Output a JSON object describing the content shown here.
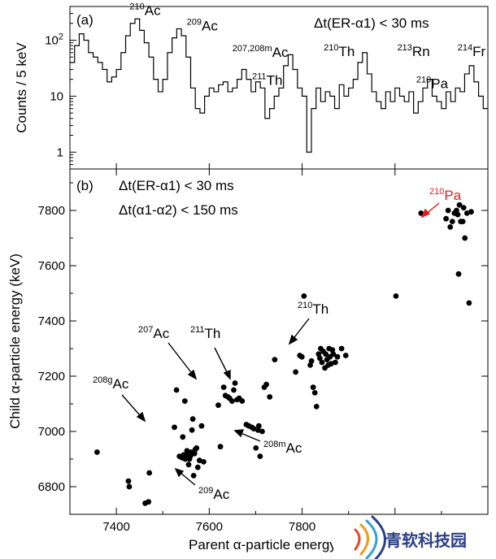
{
  "chart_data": [
    {
      "panel": "(a)",
      "type": "line",
      "ylabel": "Counts / 5 keV",
      "yscale": "log",
      "ylim": [
        0.5,
        400
      ],
      "xlim": [
        7300,
        8200
      ],
      "yticks": [
        {
          "value": 1,
          "label": "1"
        },
        {
          "value": 10,
          "label": "10"
        },
        {
          "value": 100,
          "label": "10",
          "exp": "2"
        }
      ],
      "condition": "Δt(ER-α1) < 30 ms",
      "peak_labels": [
        {
          "iso": "210",
          "name": "Ac",
          "x": 7462,
          "y": 280
        },
        {
          "iso": "209",
          "name": "Ac",
          "x": 7585,
          "y": 150
        },
        {
          "iso": "207,208m",
          "name": "Ac",
          "x": 7710,
          "y": 50
        },
        {
          "iso": "211",
          "name": "Th",
          "x": 7725,
          "y": 16
        },
        {
          "iso": "210",
          "name": "Th",
          "x": 7880,
          "y": 52
        },
        {
          "iso": "213",
          "name": "Rn",
          "x": 8040,
          "y": 52
        },
        {
          "iso": "210",
          "name": "Pa",
          "x": 8080,
          "y": 14
        },
        {
          "iso": "214",
          "name": "Fr",
          "x": 8165,
          "y": 52
        }
      ],
      "x": [
        7305,
        7315,
        7325,
        7335,
        7345,
        7355,
        7365,
        7375,
        7385,
        7395,
        7405,
        7415,
        7425,
        7435,
        7445,
        7455,
        7465,
        7475,
        7485,
        7495,
        7505,
        7515,
        7525,
        7535,
        7545,
        7555,
        7565,
        7575,
        7585,
        7595,
        7605,
        7615,
        7625,
        7635,
        7645,
        7655,
        7665,
        7675,
        7685,
        7695,
        7705,
        7715,
        7725,
        7735,
        7745,
        7755,
        7765,
        7775,
        7785,
        7795,
        7805,
        7815,
        7825,
        7835,
        7845,
        7855,
        7865,
        7875,
        7885,
        7895,
        7905,
        7915,
        7925,
        7935,
        7945,
        7955,
        7965,
        7975,
        7985,
        7995,
        8005,
        8015,
        8025,
        8035,
        8045,
        8055,
        8065,
        8075,
        8085,
        8095,
        8105,
        8115,
        8125,
        8135,
        8145,
        8155,
        8165,
        8175,
        8185,
        8195
      ],
      "y": [
        40,
        80,
        130,
        100,
        60,
        50,
        40,
        30,
        18,
        22,
        30,
        60,
        120,
        200,
        240,
        150,
        90,
        50,
        20,
        12,
        20,
        60,
        110,
        160,
        120,
        50,
        14,
        6,
        5,
        10,
        14,
        12,
        16,
        18,
        12,
        14,
        20,
        30,
        20,
        12,
        18,
        14,
        4,
        6,
        10,
        14,
        35,
        55,
        30,
        14,
        10,
        1,
        6,
        14,
        8,
        12,
        10,
        6,
        16,
        10,
        14,
        20,
        40,
        60,
        25,
        12,
        8,
        6,
        12,
        8,
        14,
        10,
        8,
        12,
        5,
        8,
        14,
        20,
        10,
        8,
        6,
        12,
        8,
        14,
        12,
        25,
        35,
        18,
        10,
        6
      ]
    },
    {
      "panel": "(b)",
      "type": "scatter",
      "xlabel": "Parent α-particle energy (keV)",
      "ylabel": "Child α-particle energy (keV)",
      "xlim": [
        7300,
        8200
      ],
      "ylim": [
        6700,
        7950
      ],
      "xticks": [
        7400,
        7600,
        7800,
        8000
      ],
      "xtick_labels": [
        "7400",
        "7600",
        "7800",
        "8000"
      ],
      "yticks": [
        6800,
        7000,
        7200,
        7400,
        7600,
        7800
      ],
      "ytick_labels": [
        "6800",
        "7000",
        "7200",
        "7400",
        "7600",
        "7800"
      ],
      "conditions": [
        "Δt(ER-α1) < 30 ms",
        "Δt(α1-α2) < 150 ms"
      ],
      "annotations": [
        {
          "iso": "210",
          "name": "Pa",
          "color": "#e41a1c"
        },
        {
          "iso": "210",
          "name": "Th",
          "color": "#000000"
        },
        {
          "iso": "207",
          "name": "Ac",
          "color": "#000000"
        },
        {
          "iso": "211",
          "name": "Th",
          "color": "#000000"
        },
        {
          "iso": "208g",
          "name": "Ac",
          "color": "#000000"
        },
        {
          "iso": "208m",
          "name": "Ac",
          "color": "#000000"
        },
        {
          "iso": "209",
          "name": "Ac",
          "color": "#000000"
        }
      ],
      "points": [
        [
          7365,
          6925
        ],
        [
          7440,
          6820
        ],
        [
          7442,
          6800
        ],
        [
          7480,
          6740
        ],
        [
          7488,
          6745
        ],
        [
          7490,
          6850
        ],
        [
          7550,
          7015
        ],
        [
          7555,
          7150
        ],
        [
          7562,
          6910
        ],
        [
          7568,
          6905
        ],
        [
          7570,
          6980
        ],
        [
          7572,
          6915
        ],
        [
          7575,
          7110
        ],
        [
          7576,
          6900
        ],
        [
          7580,
          6930
        ],
        [
          7582,
          6915
        ],
        [
          7584,
          6880
        ],
        [
          7586,
          6900
        ],
        [
          7588,
          6910
        ],
        [
          7590,
          6925
        ],
        [
          7592,
          7005
        ],
        [
          7594,
          7045
        ],
        [
          7596,
          6840
        ],
        [
          7598,
          6920
        ],
        [
          7600,
          6935
        ],
        [
          7603,
          6940
        ],
        [
          7606,
          6870
        ],
        [
          7610,
          6895
        ],
        [
          7615,
          7020
        ],
        [
          7620,
          6890
        ],
        [
          7655,
          7095
        ],
        [
          7660,
          6945
        ],
        [
          7668,
          7160
        ],
        [
          7672,
          7130
        ],
        [
          7678,
          7125
        ],
        [
          7682,
          7120
        ],
        [
          7688,
          7110
        ],
        [
          7692,
          7150
        ],
        [
          7695,
          7175
        ],
        [
          7700,
          7115
        ],
        [
          7705,
          7120
        ],
        [
          7712,
          7110
        ],
        [
          7722,
          7025
        ],
        [
          7728,
          7020
        ],
        [
          7735,
          7015
        ],
        [
          7740,
          7010
        ],
        [
          7745,
          6940
        ],
        [
          7750,
          7005
        ],
        [
          7752,
          7020
        ],
        [
          7755,
          6910
        ],
        [
          7760,
          7000
        ],
        [
          7765,
          7160
        ],
        [
          7770,
          7170
        ],
        [
          7778,
          7125
        ],
        [
          7790,
          7260
        ],
        [
          7840,
          7215
        ],
        [
          7850,
          7275
        ],
        [
          7855,
          7270
        ],
        [
          7860,
          7490
        ],
        [
          7875,
          7240
        ],
        [
          7878,
          7255
        ],
        [
          7882,
          7160
        ],
        [
          7886,
          7140
        ],
        [
          7890,
          7090
        ],
        [
          7895,
          7280
        ],
        [
          7898,
          7265
        ],
        [
          7900,
          7300
        ],
        [
          7903,
          7250
        ],
        [
          7906,
          7290
        ],
        [
          7910,
          7230
        ],
        [
          7912,
          7280
        ],
        [
          7915,
          7260
        ],
        [
          7918,
          7240
        ],
        [
          7920,
          7300
        ],
        [
          7922,
          7270
        ],
        [
          7925,
          7245
        ],
        [
          7928,
          7295
        ],
        [
          7930,
          7280
        ],
        [
          7935,
          7250
        ],
        [
          7940,
          7270
        ],
        [
          7950,
          7300
        ],
        [
          7960,
          7275
        ],
        [
          8080,
          7490
        ],
        [
          8140,
          7790
        ],
        [
          8200,
          7770
        ],
        [
          8205,
          7800
        ],
        [
          8210,
          7740
        ],
        [
          8215,
          7760
        ],
        [
          8220,
          7790
        ],
        [
          8225,
          7800
        ],
        [
          8228,
          7785
        ],
        [
          8230,
          7570
        ],
        [
          8232,
          7820
        ],
        [
          8235,
          7760
        ],
        [
          8240,
          7760
        ],
        [
          8242,
          7810
        ],
        [
          8245,
          7700
        ],
        [
          8250,
          7790
        ],
        [
          8255,
          7465
        ],
        [
          8260,
          7795
        ]
      ]
    }
  ],
  "watermark": {
    "text": "青软科技园"
  }
}
